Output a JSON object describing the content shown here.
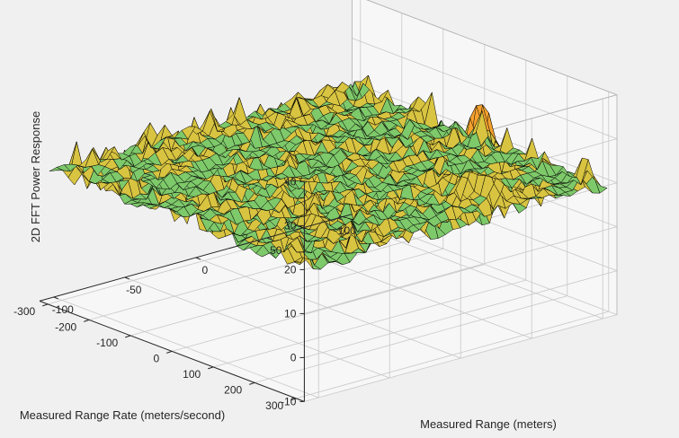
{
  "chart_data": {
    "type": "surface",
    "title": "",
    "xlabel": "Measured Range (meters)",
    "ylabel": "Measured Range Rate (meters/second)",
    "zlabel": "2D FFT Power Response",
    "x_ticks": [
      "-100",
      "-50",
      "0",
      "50",
      "100"
    ],
    "y_ticks": [
      "-300",
      "-200",
      "-100",
      "0",
      "100",
      "200",
      "300"
    ],
    "z_ticks": [
      "-10",
      "0",
      "10",
      "20",
      "30",
      "40"
    ],
    "xlim": [
      -110,
      110
    ],
    "ylim": [
      -320,
      320
    ],
    "zlim": [
      -10,
      40
    ],
    "grid": true,
    "noise_floor_db": 19,
    "noise_spread_db": 10,
    "peak": {
      "range_m": 50,
      "range_rate_mps": 200,
      "power_db": 40
    },
    "colormap": [
      "#3b8fbf",
      "#33b7a9",
      "#7ec96a",
      "#d8c440",
      "#f4a12e"
    ],
    "background_color": "#f0f0f0",
    "axes_color": "#262626",
    "grid_color": "#c8c8c8",
    "mesh_color": "#000000"
  }
}
